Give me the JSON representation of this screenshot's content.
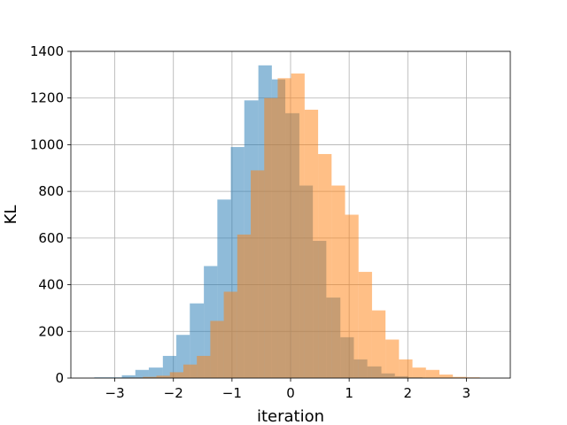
{
  "chart_data": {
    "type": "bar",
    "title": "",
    "xlabel": "iteration",
    "ylabel": "KL",
    "xlim": [
      -3.75,
      3.75
    ],
    "ylim": [
      0,
      1400
    ],
    "xticks": [
      -3,
      -2,
      -1,
      0,
      1,
      2,
      3
    ],
    "xtick_labels": [
      "−3",
      "−2",
      "−1",
      "0",
      "1",
      "2",
      "3"
    ],
    "yticks": [
      0,
      200,
      400,
      600,
      800,
      1000,
      1200,
      1400
    ],
    "ytick_labels": [
      "0",
      "200",
      "400",
      "600",
      "800",
      "1000",
      "1200",
      "1400"
    ],
    "grid": true,
    "series": [
      {
        "color": "#1f77b4",
        "opacity": 0.5,
        "bins": [
          {
            "x0": -3.35,
            "x1": -3.11,
            "y": 3
          },
          {
            "x0": -3.11,
            "x1": -2.88,
            "y": 3
          },
          {
            "x0": -2.88,
            "x1": -2.65,
            "y": 12
          },
          {
            "x0": -2.65,
            "x1": -2.42,
            "y": 35
          },
          {
            "x0": -2.42,
            "x1": -2.18,
            "y": 45
          },
          {
            "x0": -2.18,
            "x1": -1.95,
            "y": 95
          },
          {
            "x0": -1.95,
            "x1": -1.72,
            "y": 185
          },
          {
            "x0": -1.72,
            "x1": -1.48,
            "y": 320
          },
          {
            "x0": -1.48,
            "x1": -1.25,
            "y": 480
          },
          {
            "x0": -1.25,
            "x1": -1.02,
            "y": 765
          },
          {
            "x0": -1.02,
            "x1": -0.79,
            "y": 990
          },
          {
            "x0": -0.79,
            "x1": -0.55,
            "y": 1190
          },
          {
            "x0": -0.55,
            "x1": -0.32,
            "y": 1340
          },
          {
            "x0": -0.32,
            "x1": -0.09,
            "y": 1280
          },
          {
            "x0": -0.09,
            "x1": 0.15,
            "y": 1135
          },
          {
            "x0": 0.15,
            "x1": 0.38,
            "y": 825
          },
          {
            "x0": 0.38,
            "x1": 0.61,
            "y": 588
          },
          {
            "x0": 0.61,
            "x1": 0.85,
            "y": 345
          },
          {
            "x0": 0.85,
            "x1": 1.08,
            "y": 175
          },
          {
            "x0": 1.08,
            "x1": 1.31,
            "y": 80
          },
          {
            "x0": 1.31,
            "x1": 1.55,
            "y": 50
          },
          {
            "x0": 1.55,
            "x1": 1.78,
            "y": 20
          },
          {
            "x0": 1.78,
            "x1": 2.01,
            "y": 8
          },
          {
            "x0": 2.01,
            "x1": 2.25,
            "y": 3
          }
        ]
      },
      {
        "color": "#ff7f0e",
        "opacity": 0.5,
        "bins": [
          {
            "x0": -2.75,
            "x1": -2.52,
            "y": 2
          },
          {
            "x0": -2.52,
            "x1": -2.29,
            "y": 5
          },
          {
            "x0": -2.29,
            "x1": -2.06,
            "y": 10
          },
          {
            "x0": -2.06,
            "x1": -1.83,
            "y": 25
          },
          {
            "x0": -1.83,
            "x1": -1.6,
            "y": 58
          },
          {
            "x0": -1.6,
            "x1": -1.37,
            "y": 95
          },
          {
            "x0": -1.37,
            "x1": -1.14,
            "y": 245
          },
          {
            "x0": -1.14,
            "x1": -0.91,
            "y": 370
          },
          {
            "x0": -0.91,
            "x1": -0.68,
            "y": 615
          },
          {
            "x0": -0.68,
            "x1": -0.45,
            "y": 890
          },
          {
            "x0": -0.45,
            "x1": -0.22,
            "y": 1200
          },
          {
            "x0": -0.22,
            "x1": 0.01,
            "y": 1285
          },
          {
            "x0": 0.01,
            "x1": 0.24,
            "y": 1305
          },
          {
            "x0": 0.24,
            "x1": 0.47,
            "y": 1150
          },
          {
            "x0": 0.47,
            "x1": 0.7,
            "y": 960
          },
          {
            "x0": 0.7,
            "x1": 0.93,
            "y": 825
          },
          {
            "x0": 0.93,
            "x1": 1.16,
            "y": 700
          },
          {
            "x0": 1.16,
            "x1": 1.39,
            "y": 455
          },
          {
            "x0": 1.39,
            "x1": 1.62,
            "y": 290
          },
          {
            "x0": 1.62,
            "x1": 1.85,
            "y": 165
          },
          {
            "x0": 1.85,
            "x1": 2.08,
            "y": 80
          },
          {
            "x0": 2.08,
            "x1": 2.31,
            "y": 45
          },
          {
            "x0": 2.31,
            "x1": 2.54,
            "y": 35
          },
          {
            "x0": 2.54,
            "x1": 2.77,
            "y": 15
          },
          {
            "x0": 2.77,
            "x1": 3.0,
            "y": 5
          },
          {
            "x0": 3.0,
            "x1": 3.23,
            "y": 3
          }
        ]
      }
    ]
  }
}
